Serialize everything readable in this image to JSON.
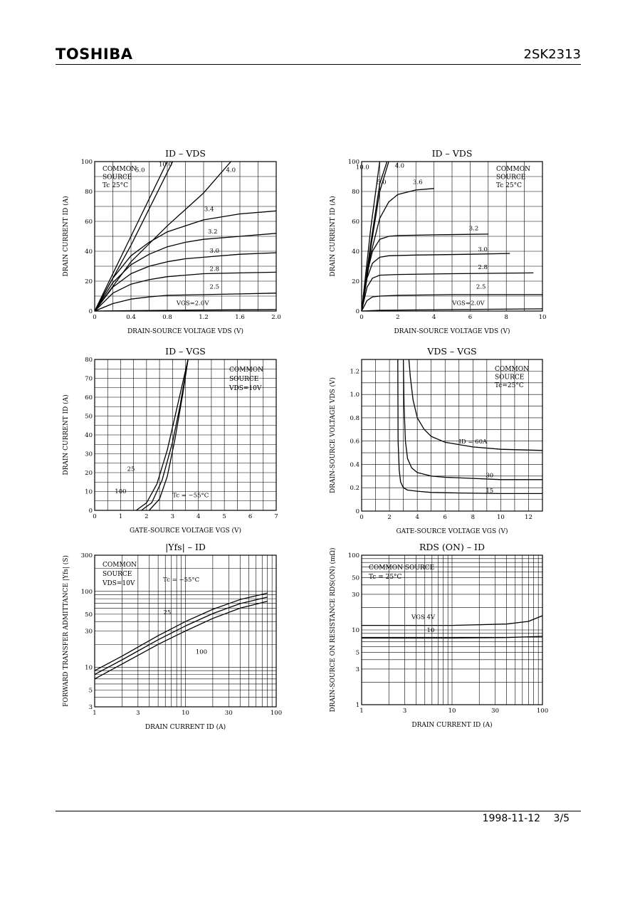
{
  "header": {
    "brand": "TOSHIBA",
    "part_number": "2SK2313"
  },
  "footer": {
    "date": "1998-11-12",
    "page": "3/5"
  },
  "chart_data": [
    {
      "id": "c1",
      "type": "line",
      "title": "ID – VDS",
      "xlabel": "DRAIN-SOURCE VOLTAGE   VDS   (V)",
      "ylabel": "DRAIN CURRENT   ID   (A)",
      "xlim": [
        0,
        2.0
      ],
      "ylim": [
        0,
        100
      ],
      "xticks": [
        0,
        0.4,
        0.8,
        1.2,
        1.6,
        2.0
      ],
      "xtick_labels": [
        "0",
        "0.4",
        "0.8",
        "1.2",
        "1.6",
        "2.0"
      ],
      "yticks": [
        0,
        20,
        40,
        60,
        80,
        100
      ],
      "ytick_labels": [
        "0",
        "20",
        "40",
        "60",
        "80",
        "100"
      ],
      "annotations": [
        "COMMON",
        "SOURCE",
        "Tc   25°C"
      ],
      "series": [
        {
          "name": "10.0",
          "x": [
            0,
            0.4,
            0.8
          ],
          "y": [
            0,
            50,
            100
          ]
        },
        {
          "name": "5.0",
          "x": [
            0,
            0.4,
            0.86
          ],
          "y": [
            0,
            44,
            100
          ]
        },
        {
          "name": "4.0",
          "x": [
            0,
            0.4,
            0.8,
            1.2,
            1.5
          ],
          "y": [
            0,
            33,
            57,
            79,
            100
          ]
        },
        {
          "name": "3.4",
          "x": [
            0,
            0.2,
            0.4,
            0.6,
            0.8,
            1.0,
            1.2,
            1.6,
            2.0
          ],
          "y": [
            0,
            22,
            37,
            46,
            53,
            57,
            61,
            65,
            67
          ]
        },
        {
          "name": "3.2",
          "x": [
            0,
            0.2,
            0.4,
            0.6,
            0.8,
            1.0,
            1.2,
            1.6,
            2.0
          ],
          "y": [
            0,
            19,
            31,
            38,
            43,
            46,
            48,
            50,
            52
          ]
        },
        {
          "name": "3.0",
          "x": [
            0,
            0.2,
            0.4,
            0.6,
            0.8,
            1.0,
            1.2,
            1.6,
            2.0
          ],
          "y": [
            0,
            16,
            25,
            30,
            33,
            35,
            36,
            38,
            39
          ]
        },
        {
          "name": "2.8",
          "x": [
            0,
            0.2,
            0.4,
            0.6,
            0.8,
            1.0,
            1.2,
            1.6,
            2.0
          ],
          "y": [
            0,
            12,
            18,
            21,
            23,
            24,
            25,
            25.5,
            26
          ]
        },
        {
          "name": "2.5",
          "x": [
            0,
            0.2,
            0.4,
            0.6,
            0.8,
            1.2,
            1.6,
            2.0
          ],
          "y": [
            0,
            5,
            8,
            9.5,
            10.5,
            11,
            11.5,
            12
          ]
        },
        {
          "name": "VGS=2.0V",
          "x": [
            0,
            0.4,
            1.0,
            2.0
          ],
          "y": [
            0,
            0.3,
            0.6,
            1
          ]
        }
      ]
    },
    {
      "id": "c2",
      "type": "line",
      "title": "ID – VDS",
      "xlabel": "DRAIN-SOURCE VOLTAGE   VDS   (V)",
      "ylabel": "DRAIN CURRENT   ID   (A)",
      "xlim": [
        0,
        10
      ],
      "ylim": [
        0,
        100
      ],
      "xticks": [
        0,
        2,
        4,
        6,
        8,
        10
      ],
      "xtick_labels": [
        "0",
        "2",
        "4",
        "6",
        "8",
        "10"
      ],
      "yticks": [
        0,
        20,
        40,
        60,
        80,
        100
      ],
      "ytick_labels": [
        "0",
        "20",
        "40",
        "60",
        "80",
        "100"
      ],
      "annotations": [
        "COMMON",
        "SOURCE",
        "Tc   25°C"
      ],
      "series": [
        {
          "name": "10.0",
          "x": [
            0,
            0.5,
            1.0
          ],
          "y": [
            0,
            55,
            100
          ]
        },
        {
          "name": "4.0",
          "x": [
            0,
            0.5,
            1.0,
            1.4
          ],
          "y": [
            0,
            45,
            85,
            100
          ]
        },
        {
          "name": "5.0",
          "x": [
            0,
            0.5,
            1.0,
            1.5
          ],
          "y": [
            0,
            42,
            80,
            100
          ]
        },
        {
          "name": "3.6",
          "x": [
            0,
            0.5,
            1.0,
            1.5,
            2.0,
            3.0,
            4.0
          ],
          "y": [
            0,
            38,
            62,
            73,
            78,
            81,
            82
          ]
        },
        {
          "name": "3.2",
          "x": [
            0,
            0.3,
            0.6,
            1.0,
            1.5,
            2.0,
            4.0,
            7.0
          ],
          "y": [
            0,
            25,
            40,
            48,
            50,
            50.5,
            51,
            51.5
          ]
        },
        {
          "name": "3.0",
          "x": [
            0,
            0.3,
            0.6,
            1.0,
            1.5,
            3.0,
            6.0,
            8.2
          ],
          "y": [
            0,
            22,
            32,
            36,
            37,
            37.5,
            38,
            38.5
          ]
        },
        {
          "name": "2.8",
          "x": [
            0,
            0.3,
            0.6,
            1.0,
            2.0,
            5.0,
            9.5
          ],
          "y": [
            0,
            16,
            22,
            24,
            24.5,
            25,
            25.5
          ]
        },
        {
          "name": "2.5",
          "x": [
            0,
            0.3,
            0.6,
            1.0,
            2.0,
            5.0,
            10.0
          ],
          "y": [
            0,
            7,
            9.5,
            10,
            10.5,
            11,
            11
          ]
        },
        {
          "name": "VGS=2.0V",
          "x": [
            0,
            1.0,
            5.0,
            10.0
          ],
          "y": [
            0,
            0.5,
            1,
            1.5
          ]
        }
      ]
    },
    {
      "id": "c3",
      "type": "line",
      "title": "ID – VGS",
      "xlabel": "GATE-SOURCE VOLTAGE   VGS   (V)",
      "ylabel": "DRAIN CURRENT   ID   (A)",
      "xlim": [
        0,
        7
      ],
      "ylim": [
        0,
        80
      ],
      "xticks": [
        0,
        1,
        2,
        3,
        4,
        5,
        6,
        7
      ],
      "xtick_labels": [
        "0",
        "1",
        "2",
        "3",
        "4",
        "5",
        "6",
        "7"
      ],
      "yticks": [
        0,
        10,
        20,
        30,
        40,
        50,
        60,
        70,
        80
      ],
      "ytick_labels": [
        "0",
        "10",
        "20",
        "30",
        "40",
        "50",
        "60",
        "70",
        "80"
      ],
      "annotations": [
        "COMMON",
        "SOURCE",
        "VDS=10V"
      ],
      "series": [
        {
          "name": "100",
          "x": [
            1.6,
            2.0,
            2.4,
            2.8,
            3.2,
            3.6
          ],
          "y": [
            0,
            4,
            14,
            32,
            56,
            80
          ]
        },
        {
          "name": "25",
          "x": [
            1.8,
            2.2,
            2.6,
            3.0,
            3.3,
            3.6
          ],
          "y": [
            0,
            4,
            16,
            36,
            56,
            80
          ]
        },
        {
          "name": "Tc = −55°C",
          "x": [
            2.1,
            2.5,
            2.8,
            3.1,
            3.4,
            3.6
          ],
          "y": [
            0,
            6,
            18,
            38,
            62,
            80
          ]
        }
      ]
    },
    {
      "id": "c4",
      "type": "line",
      "title": "VDS – VGS",
      "xlabel": "GATE-SOURCE VOLTAGE   VGS   (V)",
      "ylabel": "DRAIN-SOURCE VOLTAGE   VDS   (V)",
      "xlim": [
        0,
        13
      ],
      "ylim": [
        0,
        1.3
      ],
      "xticks": [
        0,
        2,
        4,
        6,
        8,
        10,
        12
      ],
      "xtick_labels": [
        "0",
        "2",
        "4",
        "6",
        "8",
        "10",
        "12"
      ],
      "yticks": [
        0,
        0.2,
        0.4,
        0.6,
        0.8,
        1.0,
        1.2
      ],
      "ytick_labels": [
        "0",
        "0.2",
        "0.4",
        "0.6",
        "0.8",
        "1.0",
        "1.2"
      ],
      "annotations": [
        "COMMON",
        "SOURCE",
        "Tc=25°C"
      ],
      "series": [
        {
          "name": "ID = 60A",
          "x": [
            3.4,
            3.5,
            3.7,
            4.0,
            4.5,
            5.0,
            6.0,
            7.0,
            8.0,
            10.0,
            13.0
          ],
          "y": [
            1.3,
            1.15,
            0.95,
            0.8,
            0.7,
            0.64,
            0.59,
            0.57,
            0.55,
            0.53,
            0.52
          ]
        },
        {
          "name": "30",
          "x": [
            3.0,
            3.05,
            3.15,
            3.3,
            3.6,
            4.0,
            5.0,
            6.0,
            8.0,
            10.0,
            13.0
          ],
          "y": [
            1.3,
            0.9,
            0.6,
            0.45,
            0.37,
            0.33,
            0.3,
            0.29,
            0.28,
            0.27,
            0.27
          ]
        },
        {
          "name": "15",
          "x": [
            2.6,
            2.62,
            2.7,
            2.8,
            3.0,
            3.3,
            4.0,
            5.0,
            7.0,
            10.0,
            13.0
          ],
          "y": [
            1.3,
            0.6,
            0.35,
            0.25,
            0.2,
            0.18,
            0.17,
            0.16,
            0.155,
            0.15,
            0.15
          ]
        }
      ]
    },
    {
      "id": "c5",
      "type": "line",
      "title": "|Yfs| – ID",
      "xlabel": "DRAIN CURRENT   ID   (A)",
      "ylabel": "FORWARD TRANSFER ADMITTANCE   |Yfs|   (S)",
      "xscale": "log",
      "yscale": "log",
      "xlim": [
        1,
        100
      ],
      "ylim": [
        3,
        300
      ],
      "xticks": [
        1,
        3,
        10,
        30,
        100
      ],
      "xtick_labels": [
        "1",
        "3",
        "10",
        "30",
        "100"
      ],
      "yticks": [
        3,
        5,
        10,
        30,
        50,
        100,
        300
      ],
      "ytick_labels": [
        "3",
        "5",
        "10",
        "30",
        "50",
        "100",
        "300"
      ],
      "annotations": [
        "COMMON",
        "SOURCE",
        "VDS=10V"
      ],
      "series": [
        {
          "name": "Tc = −55°C",
          "x": [
            1,
            2,
            5,
            10,
            20,
            40,
            80
          ],
          "y": [
            9,
            14,
            26,
            40,
            58,
            78,
            95
          ]
        },
        {
          "name": "25",
          "x": [
            1,
            2,
            5,
            10,
            20,
            40,
            80
          ],
          "y": [
            8,
            12.5,
            23,
            35,
            51,
            69,
            84
          ]
        },
        {
          "name": "100",
          "x": [
            1,
            2,
            5,
            10,
            20,
            40,
            80
          ],
          "y": [
            7,
            11,
            20,
            30,
            44,
            60,
            74
          ]
        }
      ]
    },
    {
      "id": "c6",
      "type": "line",
      "title": "RDS (ON) – ID",
      "xlabel": "DRAIN CURRENT   ID   (A)",
      "ylabel": "DRAIN-SOURCE ON RESISTANCE   RDS(ON)   (mΩ)",
      "xscale": "log",
      "yscale": "log",
      "xlim": [
        1,
        100
      ],
      "ylim": [
        1,
        100
      ],
      "xticks": [
        1,
        3,
        10,
        30,
        100
      ],
      "xtick_labels": [
        "1",
        "3",
        "10",
        "30",
        "100"
      ],
      "yticks": [
        1,
        3,
        5,
        10,
        30,
        50,
        100
      ],
      "ytick_labels": [
        "1",
        "3",
        "5",
        "10",
        "30",
        "50",
        "100"
      ],
      "annotations": [
        "COMMON SOURCE",
        "Tc = 25°C"
      ],
      "series": [
        {
          "name": "VGS   4V",
          "x": [
            1,
            10,
            40,
            70,
            100
          ],
          "y": [
            11.5,
            11.5,
            12,
            13,
            15.5
          ]
        },
        {
          "name": "10",
          "x": [
            1,
            10,
            40,
            100
          ],
          "y": [
            7.8,
            7.8,
            7.9,
            8.2
          ]
        }
      ]
    }
  ]
}
